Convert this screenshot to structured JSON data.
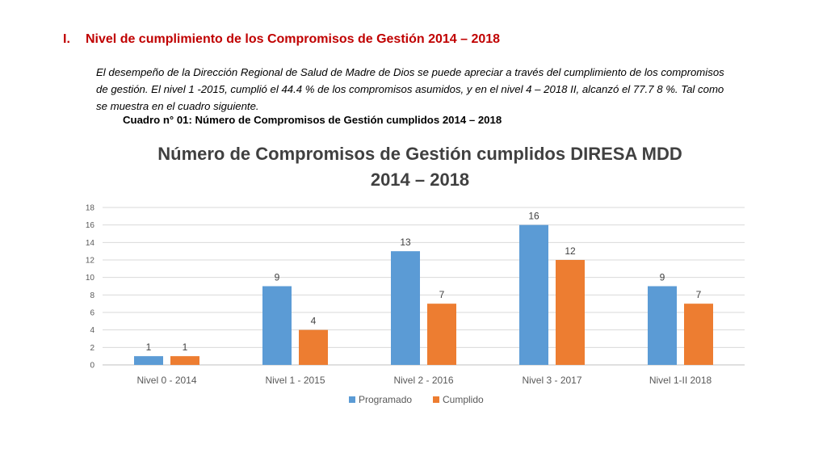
{
  "section": {
    "number": "I.",
    "title": "Nivel de cumplimiento de los Compromisos de Gestión  2014 – 2018"
  },
  "paragraph": {
    "lines": [
      "El desempeño de la Dirección Regional de Salud de Madre de Dios  se puede apreciar a través del cumplimiento de los compromisos",
      "de gestión. El nivel 1 -2015, cumplió el 44.4 % de los compromisos asumidos, y en el nivel 4 – 2018 II, alcanzó el 77.7 8 %. Tal como",
      "se muestra en el cuadro siguiente."
    ]
  },
  "caption": "Cuadro n° 01: Número de Compromisos de Gestión cumplidos 2014 – 2018",
  "colors": {
    "programado": "#5b9bd5",
    "cumplido": "#ed7d31",
    "heading": "#c00000"
  },
  "chart_data": {
    "type": "bar",
    "title": [
      "Número de Compromisos de Gestión cumplidos  DIRESA MDD",
      "2014 – 2018"
    ],
    "categories": [
      "Nivel 0 - 2014",
      "Nivel 1 - 2015",
      "Nivel 2 - 2016",
      "Nivel 3 - 2017",
      "Nivel  1-II 2018"
    ],
    "series": [
      {
        "name": "Programado",
        "values": [
          1,
          9,
          13,
          16,
          9
        ]
      },
      {
        "name": "Cumplido",
        "values": [
          1,
          4,
          7,
          12,
          7
        ]
      }
    ],
    "ylim": [
      0,
      18
    ],
    "yticks": [
      0,
      2,
      4,
      6,
      8,
      10,
      12,
      14,
      16,
      18
    ],
    "xlabel": "",
    "ylabel": "",
    "grid": true,
    "legend": "bottom"
  }
}
